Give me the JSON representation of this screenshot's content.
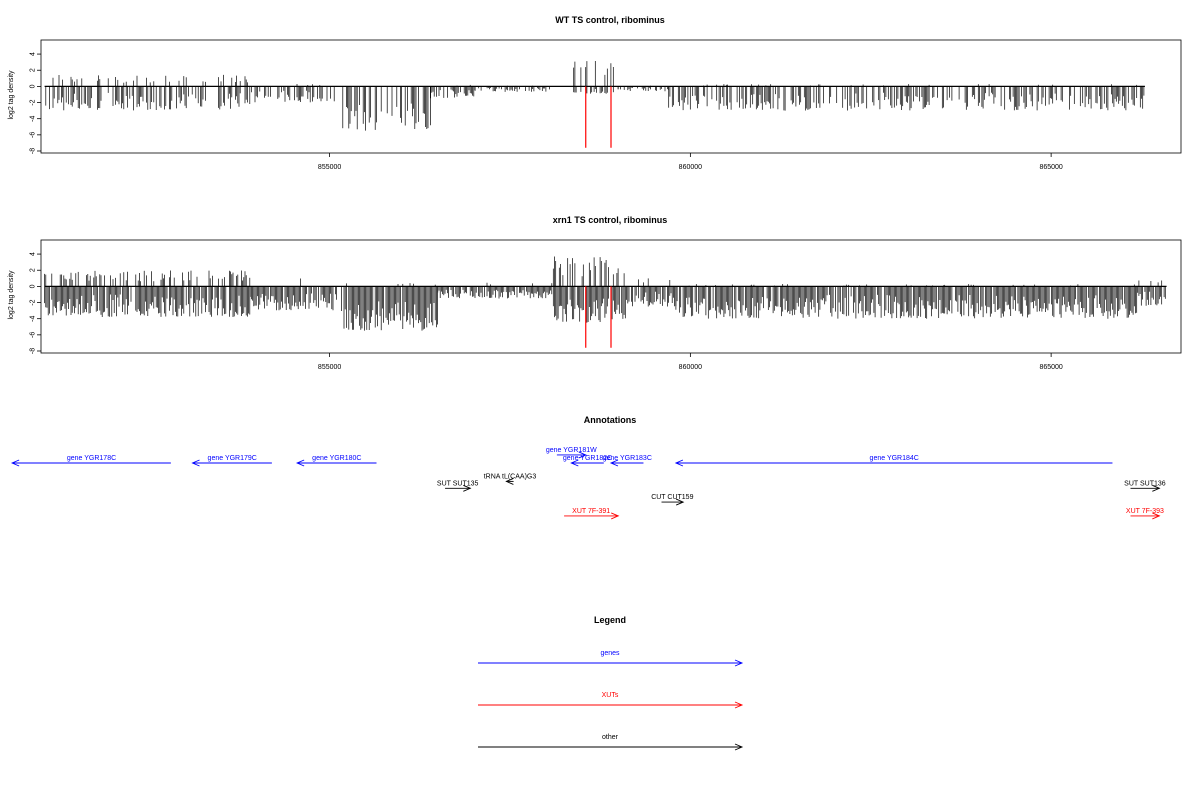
{
  "chart_data": [
    {
      "type": "bar",
      "title": "WT TS control, ribominus",
      "ylabel": "log2 tag density",
      "xlabel": "",
      "ylim": [
        -8,
        5
      ],
      "xlim": [
        851000,
        866800
      ],
      "yticks": [
        4,
        2,
        0,
        -2,
        -4,
        -6,
        -8
      ],
      "xticks": [
        855000,
        860000,
        865000
      ],
      "bar_color": "#000000",
      "segments": [
        {
          "start": 851050,
          "end": 853900,
          "up": 1.5,
          "down": 3.0
        },
        {
          "start": 853900,
          "end": 855100,
          "up": 0.3,
          "down": 2.0
        },
        {
          "start": 855150,
          "end": 856400,
          "up": 0.0,
          "down": 5.5
        },
        {
          "start": 856400,
          "end": 857000,
          "up": 0.2,
          "down": 1.5
        },
        {
          "start": 857000,
          "end": 858100,
          "up": 0.1,
          "down": 0.7
        },
        {
          "start": 858300,
          "end": 859000,
          "up": 3.2,
          "down": 1.0
        },
        {
          "start": 859000,
          "end": 859700,
          "up": 0.2,
          "down": 0.6
        },
        {
          "start": 859700,
          "end": 866300,
          "up": 0.3,
          "down": 3.0
        }
      ],
      "highlight_lines": [
        {
          "x": 858550,
          "y_from": 0,
          "y_to": -7.6,
          "color": "#ff0000"
        },
        {
          "x": 858900,
          "y_from": 0,
          "y_to": -7.6,
          "color": "#ff0000"
        }
      ]
    },
    {
      "type": "bar",
      "title": "xrn1 TS control, ribominus",
      "ylabel": "log2 tag density",
      "xlabel": "",
      "ylim": [
        -8,
        5
      ],
      "xlim": [
        851000,
        866800
      ],
      "yticks": [
        4,
        2,
        0,
        -2,
        -4,
        -6,
        -8
      ],
      "xticks": [
        855000,
        860000,
        865000
      ],
      "bar_color": "#000000",
      "segments": [
        {
          "start": 851050,
          "end": 853900,
          "up": 2.0,
          "down": 3.8
        },
        {
          "start": 853900,
          "end": 855100,
          "up": 1.0,
          "down": 3.0
        },
        {
          "start": 855150,
          "end": 856500,
          "up": 0.5,
          "down": 5.5
        },
        {
          "start": 856500,
          "end": 858100,
          "up": 0.5,
          "down": 1.5
        },
        {
          "start": 858100,
          "end": 859100,
          "up": 3.8,
          "down": 4.5
        },
        {
          "start": 859100,
          "end": 859800,
          "up": 1.0,
          "down": 2.5
        },
        {
          "start": 859800,
          "end": 866200,
          "up": 0.3,
          "down": 4.0
        },
        {
          "start": 866200,
          "end": 866600,
          "up": 0.8,
          "down": 2.5
        }
      ],
      "highlight_lines": [
        {
          "x": 858550,
          "y_from": 0,
          "y_to": -7.6,
          "color": "#ff0000"
        },
        {
          "x": 858900,
          "y_from": 0,
          "y_to": -7.6,
          "color": "#ff0000"
        }
      ]
    }
  ],
  "annotations": {
    "title": "Annotations",
    "features": [
      {
        "label": "gene YGR178C",
        "start": 850600,
        "end": 852800,
        "strand": "-",
        "row": 0,
        "color": "#0000ff"
      },
      {
        "label": "gene YGR179C",
        "start": 853100,
        "end": 854200,
        "strand": "-",
        "row": 0,
        "color": "#0000ff"
      },
      {
        "label": "gene YGR180C",
        "start": 854550,
        "end": 855650,
        "strand": "-",
        "row": 0,
        "color": "#0000ff"
      },
      {
        "label": "gene YGR181W",
        "start": 858150,
        "end": 858550,
        "strand": "+",
        "row": -0.35,
        "color": "#0000ff"
      },
      {
        "label": "gene YGR182C",
        "start": 858350,
        "end": 858800,
        "strand": "-",
        "row": 0,
        "color": "#0000ff"
      },
      {
        "label": "gene YGR183C",
        "start": 858900,
        "end": 859350,
        "strand": "-",
        "row": 0,
        "color": "#0000ff"
      },
      {
        "label": "gene YGR184C",
        "start": 859800,
        "end": 865850,
        "strand": "-",
        "row": 0,
        "color": "#0000ff"
      },
      {
        "label": "tRNA tL(CAA)G3",
        "start": 857450,
        "end": 857550,
        "strand": "-",
        "row": 0.8,
        "color": "#000000"
      },
      {
        "label": "SUT SUT135",
        "start": 856600,
        "end": 856950,
        "strand": "+",
        "row": 1.1,
        "color": "#000000"
      },
      {
        "label": "CUT CUT159",
        "start": 859600,
        "end": 859900,
        "strand": "+",
        "row": 1.7,
        "color": "#000000"
      },
      {
        "label": "SUT SUT136",
        "start": 866100,
        "end": 866500,
        "strand": "+",
        "row": 1.1,
        "color": "#000000"
      },
      {
        "label": "XUT 7F-391",
        "start": 858250,
        "end": 859000,
        "strand": "+",
        "row": 2.3,
        "color": "#ff0000"
      },
      {
        "label": "XUT 7F-393",
        "start": 866100,
        "end": 866500,
        "strand": "+",
        "row": 2.3,
        "color": "#ff0000"
      }
    ]
  },
  "legend": {
    "title": "Legend",
    "entries": [
      {
        "label": "genes",
        "color": "#0000ff"
      },
      {
        "label": "XUTs",
        "color": "#ff0000"
      },
      {
        "label": "other",
        "color": "#000000"
      }
    ]
  }
}
